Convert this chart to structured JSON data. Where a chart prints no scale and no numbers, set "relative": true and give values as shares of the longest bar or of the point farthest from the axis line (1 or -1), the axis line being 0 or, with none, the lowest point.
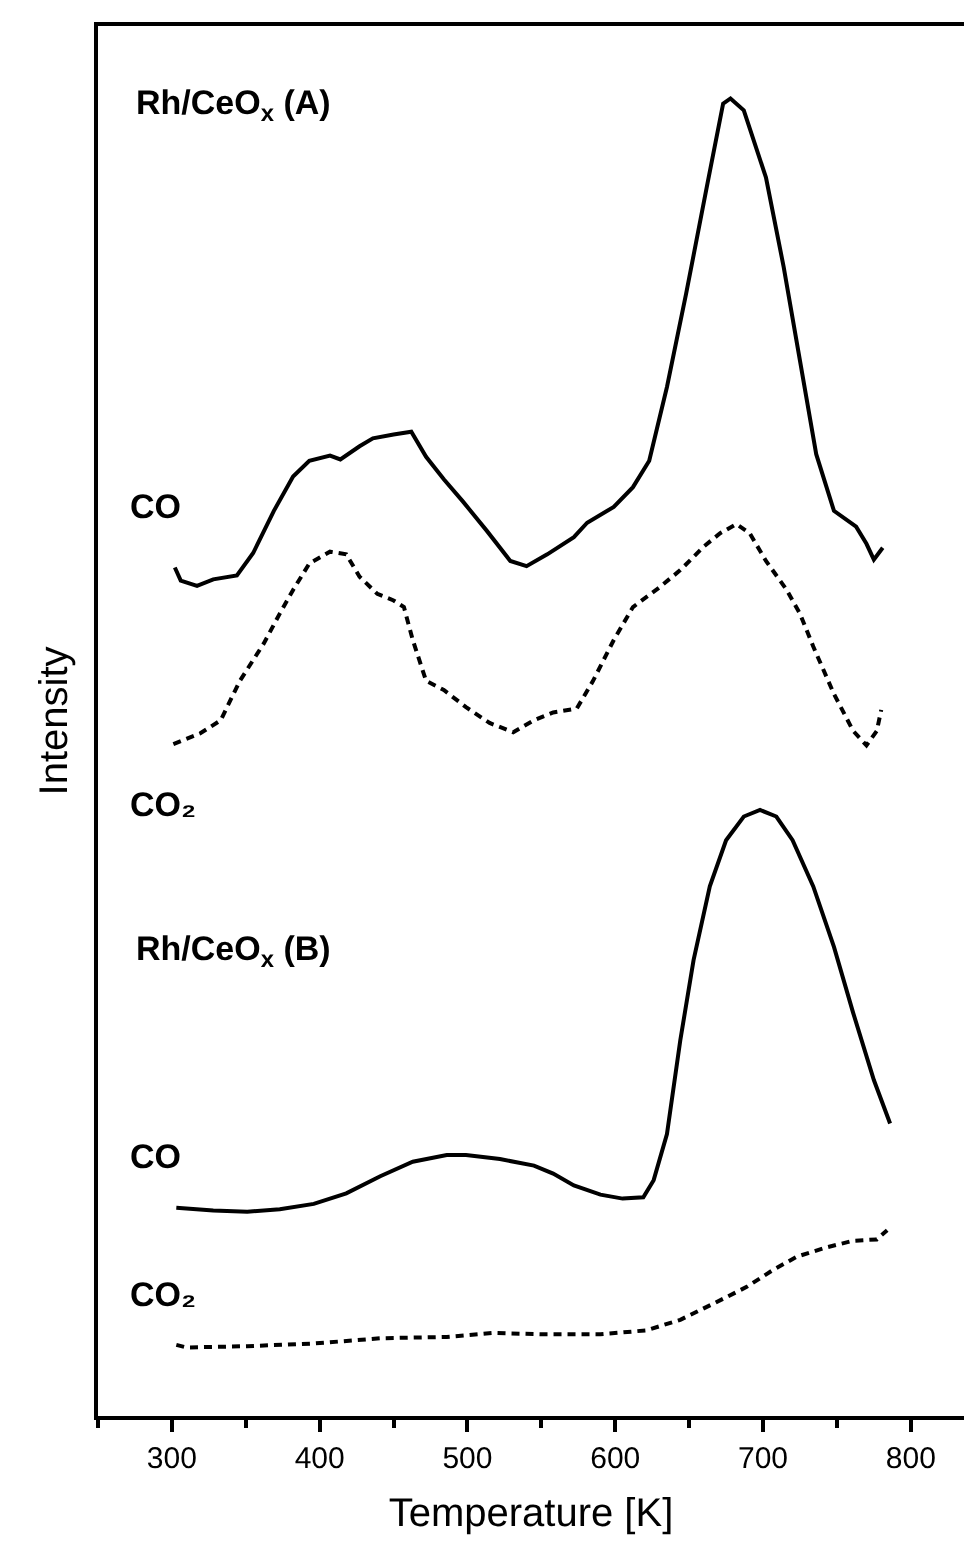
{
  "chart_data": {
    "type": "line",
    "relative": true,
    "xlabel": "Temperature [K]",
    "ylabel": "Intensity",
    "xlim": [
      250,
      836
    ],
    "xticks": [
      300,
      400,
      500,
      600,
      700,
      800
    ],
    "annotations": [
      "Rh/CeO$_{x}$ (A)",
      "Rh/CeO$_{x}$ (B)"
    ],
    "series": [
      {
        "name": "CO",
        "color": "#000000",
        "line_style": "solid",
        "x": [
          302,
          306,
          317,
          328,
          344,
          355,
          369,
          382,
          393,
          407,
          414,
          427,
          436,
          450,
          462,
          472,
          484,
          497,
          513,
          529,
          540,
          554,
          572,
          581,
          599,
          612,
          623,
          635,
          648,
          662,
          673,
          678,
          687,
          702,
          714,
          725,
          736,
          748,
          763,
          770,
          775,
          781
        ],
        "values": [
          0.644,
          0.634,
          0.63,
          0.635,
          0.638,
          0.655,
          0.687,
          0.713,
          0.725,
          0.729,
          0.726,
          0.736,
          0.742,
          0.745,
          0.747,
          0.728,
          0.711,
          0.694,
          0.672,
          0.649,
          0.645,
          0.654,
          0.667,
          0.678,
          0.69,
          0.705,
          0.725,
          0.781,
          0.852,
          0.933,
          0.996,
          1.0,
          0.991,
          0.94,
          0.872,
          0.801,
          0.73,
          0.687,
          0.675,
          0.662,
          0.65,
          0.659
        ]
      },
      {
        "name": "CO₂",
        "color": "#000000",
        "line_style": "dashed",
        "x": [
          301,
          319,
          333,
          346,
          362,
          373,
          382,
          393,
          407,
          418,
          427,
          439,
          450,
          457,
          463,
          472,
          484,
          499,
          515,
          531,
          545,
          558,
          574,
          585,
          599,
          612,
          630,
          644,
          660,
          671,
          682,
          691,
          702,
          716,
          725,
          734,
          748,
          761,
          770,
          777,
          780
        ],
        "values": [
          0.51,
          0.518,
          0.528,
          0.558,
          0.586,
          0.609,
          0.627,
          0.647,
          0.656,
          0.654,
          0.637,
          0.624,
          0.619,
          0.614,
          0.589,
          0.558,
          0.551,
          0.538,
          0.526,
          0.519,
          0.528,
          0.534,
          0.537,
          0.558,
          0.589,
          0.614,
          0.629,
          0.642,
          0.66,
          0.67,
          0.677,
          0.67,
          0.649,
          0.627,
          0.609,
          0.584,
          0.548,
          0.52,
          0.509,
          0.52,
          0.536
        ]
      },
      {
        "name": "CO",
        "color": "#000000",
        "line_style": "solid",
        "x": [
          303,
          328,
          351,
          373,
          396,
          418,
          441,
          463,
          486,
          499,
          522,
          545,
          558,
          572,
          590,
          605,
          619,
          626,
          635,
          644,
          653,
          664,
          675,
          687,
          698,
          709,
          720,
          734,
          748,
          761,
          775,
          786
        ],
        "values": [
          0.158,
          0.156,
          0.155,
          0.157,
          0.161,
          0.169,
          0.182,
          0.193,
          0.198,
          0.198,
          0.195,
          0.19,
          0.184,
          0.175,
          0.168,
          0.165,
          0.166,
          0.179,
          0.214,
          0.285,
          0.346,
          0.402,
          0.437,
          0.455,
          0.46,
          0.455,
          0.437,
          0.402,
          0.356,
          0.306,
          0.255,
          0.222
        ]
      },
      {
        "name": "CO₂",
        "color": "#000000",
        "line_style": "dashed",
        "x": [
          303,
          310,
          351,
          396,
          441,
          486,
          517,
          554,
          590,
          621,
          644,
          666,
          689,
          707,
          723,
          743,
          761,
          777,
          784
        ],
        "values": [
          0.054,
          0.052,
          0.053,
          0.055,
          0.059,
          0.06,
          0.063,
          0.062,
          0.062,
          0.065,
          0.073,
          0.085,
          0.098,
          0.111,
          0.121,
          0.128,
          0.133,
          0.134,
          0.141
        ]
      }
    ]
  }
}
